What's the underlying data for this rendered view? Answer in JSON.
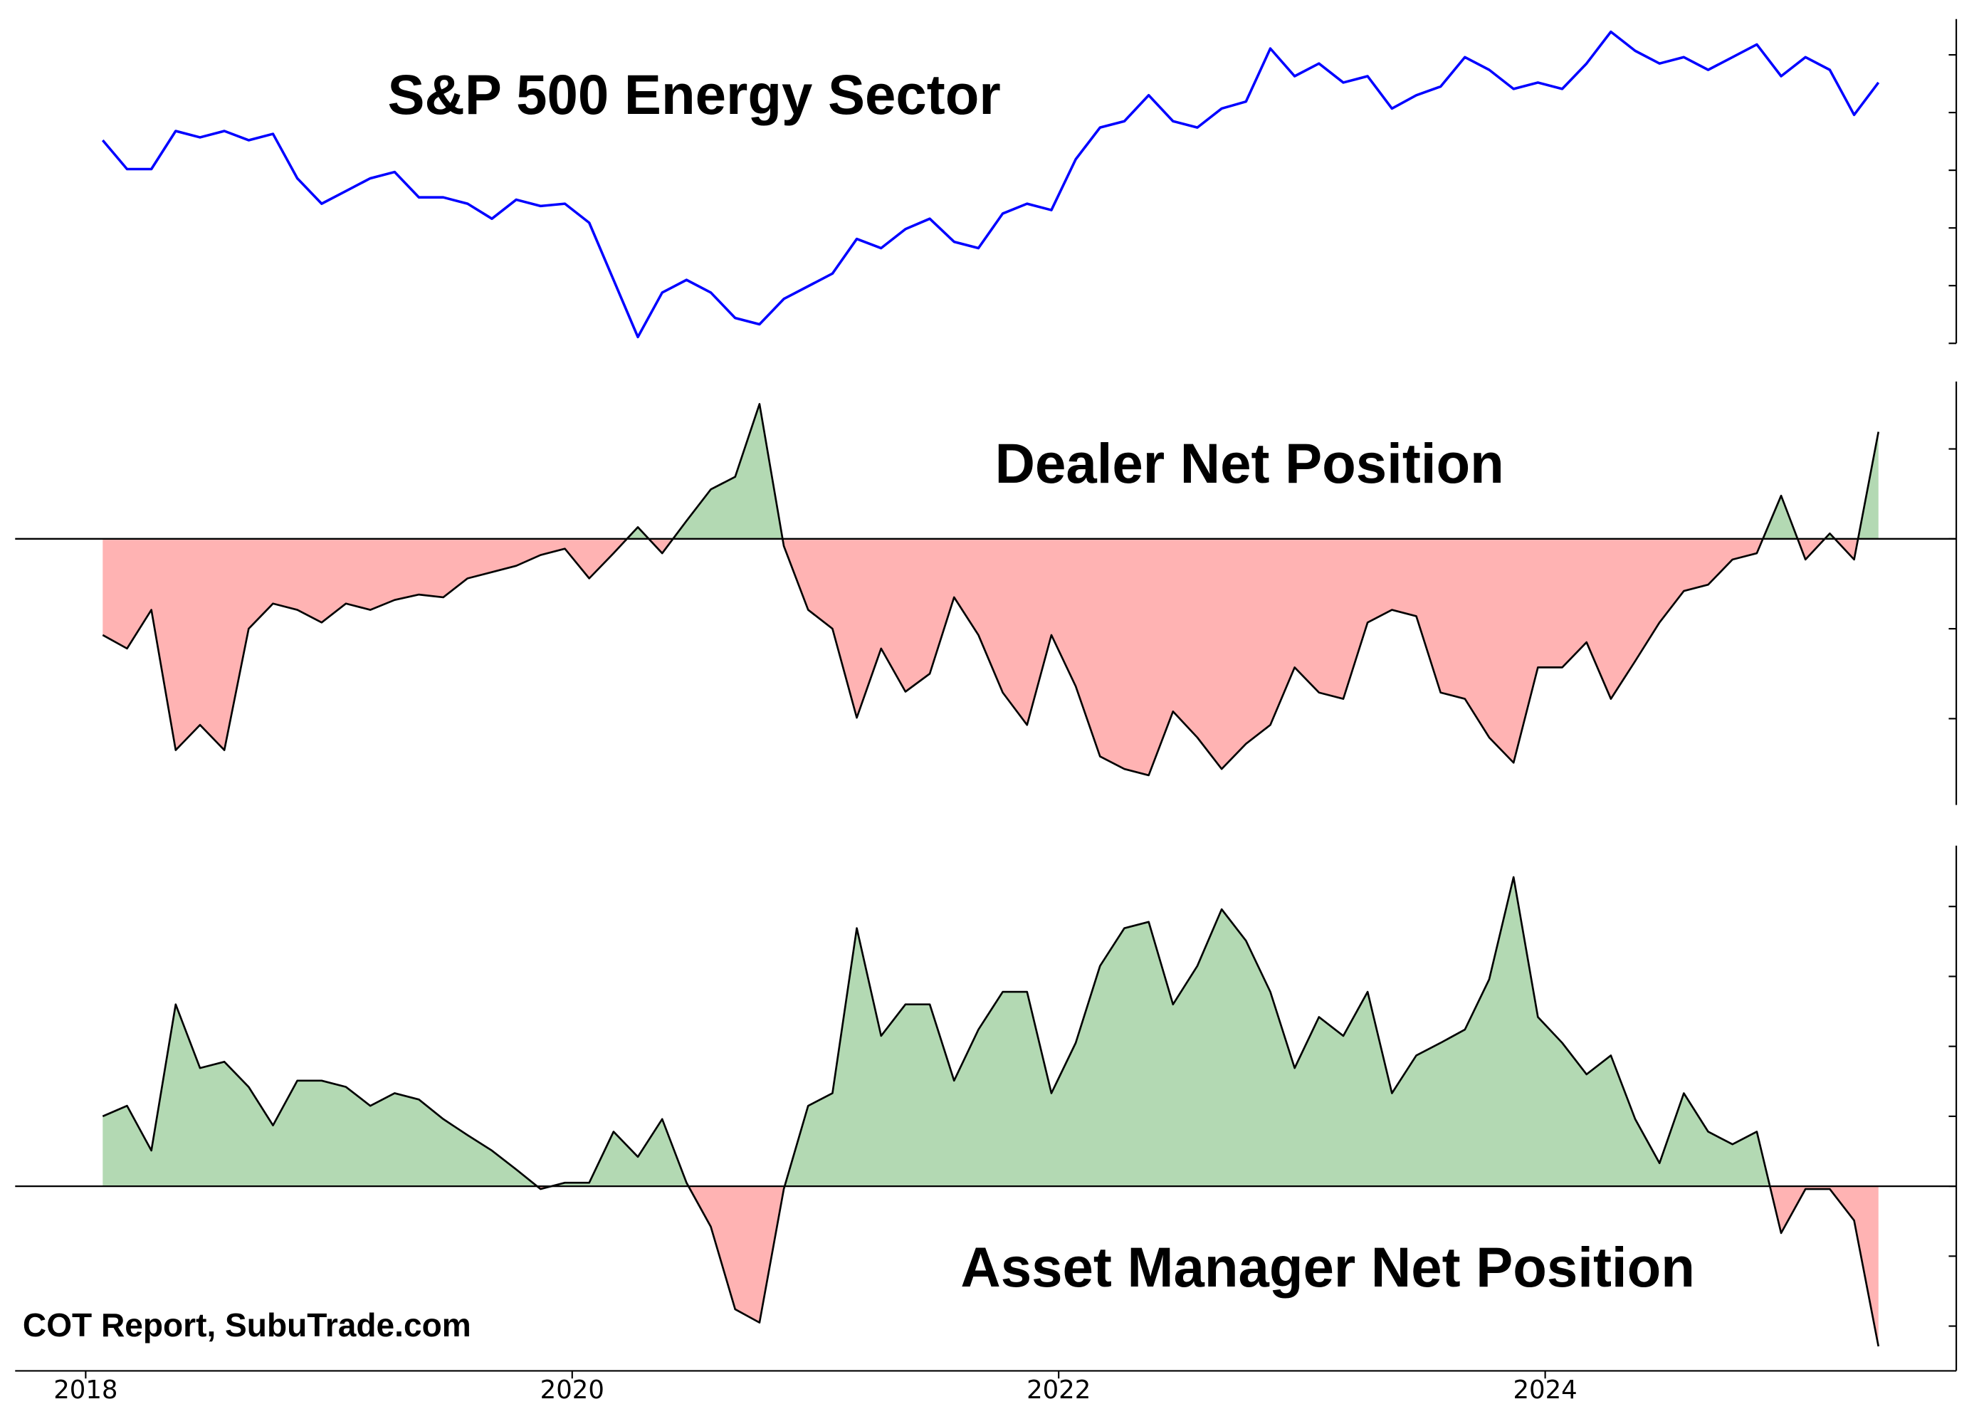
{
  "chart_data": [
    {
      "type": "line",
      "title": "S&P 500 Energy Sector",
      "x": [
        2018.07,
        2018.17,
        2018.27,
        2018.37,
        2018.47,
        2018.57,
        2018.67,
        2018.77,
        2018.87,
        2018.97,
        2019.07,
        2019.17,
        2019.27,
        2019.37,
        2019.47,
        2019.57,
        2019.67,
        2019.77,
        2019.87,
        2019.97,
        2020.07,
        2020.17,
        2020.27,
        2020.37,
        2020.47,
        2020.57,
        2020.67,
        2020.77,
        2020.87,
        2020.97,
        2021.07,
        2021.17,
        2021.27,
        2021.37,
        2021.47,
        2021.57,
        2021.67,
        2021.77,
        2021.87,
        2021.97,
        2022.07,
        2022.17,
        2022.27,
        2022.37,
        2022.47,
        2022.57,
        2022.67,
        2022.77,
        2022.87,
        2022.97,
        2023.07,
        2023.17,
        2023.27,
        2023.37,
        2023.47,
        2023.57,
        2023.67,
        2023.77,
        2023.87,
        2023.97,
        2024.07,
        2024.17,
        2024.27,
        2024.37,
        2024.47,
        2024.57,
        2024.67,
        2024.77,
        2024.87,
        2024.97,
        2025.07,
        2025.17,
        2025.27,
        2025.37
      ],
      "series": [
        {
          "color": "#0000ff",
          "values": [
            3.52,
            3.02,
            3.02,
            3.68,
            3.57,
            3.68,
            3.52,
            3.63,
            2.86,
            2.42,
            2.64,
            2.86,
            2.97,
            2.53,
            2.53,
            2.42,
            2.16,
            2.49,
            2.38,
            2.42,
            2.09,
            1.1,
            0.11,
            0.88,
            1.1,
            0.88,
            0.44,
            0.33,
            0.77,
            0.99,
            1.21,
            1.81,
            1.65,
            1.98,
            2.16,
            1.76,
            1.65,
            2.25,
            2.42,
            2.31,
            3.19,
            3.74,
            3.85,
            4.3,
            3.85,
            3.74,
            4.07,
            4.19,
            5.11,
            4.63,
            4.85,
            4.52,
            4.63,
            4.07,
            4.3,
            4.45,
            4.96,
            4.74,
            4.41,
            4.52,
            4.41,
            4.85,
            5.4,
            5.07,
            4.85,
            4.96,
            4.74,
            4.96,
            5.18,
            4.63,
            4.96,
            4.74,
            3.96,
            4.52
          ]
        }
      ],
      "xlim": [
        2017.71,
        2025.69
      ],
      "ylim": [
        0,
        5.62
      ],
      "yticks": [
        0,
        1,
        2,
        3,
        4,
        5
      ]
    },
    {
      "type": "area",
      "title": "Dealer Net Position",
      "x": [
        2018.07,
        2018.17,
        2018.27,
        2018.37,
        2018.47,
        2018.57,
        2018.67,
        2018.77,
        2018.87,
        2018.97,
        2019.07,
        2019.17,
        2019.27,
        2019.37,
        2019.47,
        2019.57,
        2019.67,
        2019.77,
        2019.87,
        2019.97,
        2020.07,
        2020.17,
        2020.27,
        2020.37,
        2020.47,
        2020.57,
        2020.67,
        2020.77,
        2020.87,
        2020.97,
        2021.07,
        2021.17,
        2021.27,
        2021.37,
        2021.47,
        2021.57,
        2021.67,
        2021.77,
        2021.87,
        2021.97,
        2022.07,
        2022.17,
        2022.27,
        2022.37,
        2022.47,
        2022.57,
        2022.67,
        2022.77,
        2022.87,
        2022.97,
        2023.07,
        2023.17,
        2023.27,
        2023.37,
        2023.47,
        2023.57,
        2023.67,
        2023.77,
        2023.87,
        2023.97,
        2024.07,
        2024.17,
        2024.27,
        2024.37,
        2024.47,
        2024.57,
        2024.67,
        2024.77,
        2024.87,
        2024.97,
        2025.07,
        2025.17,
        2025.27,
        2025.37
      ],
      "series": [
        {
          "color": "#000000",
          "values": [
            -1.07,
            -1.22,
            -0.79,
            -2.35,
            -2.07,
            -2.35,
            -1.0,
            -0.72,
            -0.79,
            -0.93,
            -0.72,
            -0.79,
            -0.68,
            -0.62,
            -0.65,
            -0.44,
            -0.37,
            -0.3,
            -0.18,
            -0.11,
            -0.44,
            -0.16,
            0.13,
            -0.16,
            0.2,
            0.55,
            0.69,
            1.5,
            -0.08,
            -0.79,
            -1.0,
            -1.99,
            -1.22,
            -1.7,
            -1.5,
            -0.65,
            -1.07,
            -1.71,
            -2.07,
            -1.07,
            -1.64,
            -2.42,
            -2.56,
            -2.63,
            -1.92,
            -2.21,
            -2.56,
            -2.28,
            -2.07,
            -1.43,
            -1.71,
            -1.78,
            -0.93,
            -0.79,
            -0.86,
            -1.71,
            -1.78,
            -2.21,
            -2.49,
            -1.43,
            -1.43,
            -1.15,
            -1.78,
            -1.36,
            -0.93,
            -0.58,
            -0.51,
            -0.23,
            -0.16,
            0.48,
            -0.23,
            0.06,
            -0.23,
            1.19
          ]
        }
      ],
      "positive_color": "#b3d9b3",
      "negative_color": "#ffb3b3",
      "xlim": [
        2017.71,
        2025.69
      ],
      "ylim": [
        -2.96,
        1.75
      ],
      "yticks": [
        -2,
        -1,
        0,
        1
      ]
    },
    {
      "type": "area",
      "title": "Asset Manager Net Position",
      "source": "COT Report, SubuTrade.com",
      "x": [
        2018.07,
        2018.17,
        2018.27,
        2018.37,
        2018.47,
        2018.57,
        2018.67,
        2018.77,
        2018.87,
        2018.97,
        2019.07,
        2019.17,
        2019.27,
        2019.37,
        2019.47,
        2019.57,
        2019.67,
        2019.77,
        2019.87,
        2019.97,
        2020.07,
        2020.17,
        2020.27,
        2020.37,
        2020.47,
        2020.57,
        2020.67,
        2020.77,
        2020.87,
        2020.97,
        2021.07,
        2021.17,
        2021.27,
        2021.37,
        2021.47,
        2021.57,
        2021.67,
        2021.77,
        2021.87,
        2021.97,
        2022.07,
        2022.17,
        2022.27,
        2022.37,
        2022.47,
        2022.57,
        2022.67,
        2022.77,
        2022.87,
        2022.97,
        2023.07,
        2023.17,
        2023.27,
        2023.37,
        2023.47,
        2023.57,
        2023.67,
        2023.77,
        2023.87,
        2023.97,
        2024.07,
        2024.17,
        2024.27,
        2024.37,
        2024.47,
        2024.57,
        2024.67,
        2024.77,
        2024.87,
        2024.97,
        2025.07,
        2025.17,
        2025.27,
        2025.37
      ],
      "series": [
        {
          "color": "#000000",
          "values": [
            1.0,
            1.15,
            0.51,
            2.6,
            1.69,
            1.78,
            1.42,
            0.87,
            1.51,
            1.51,
            1.42,
            1.15,
            1.33,
            1.24,
            0.96,
            0.73,
            0.51,
            0.24,
            -0.04,
            0.05,
            0.05,
            0.78,
            0.42,
            0.96,
            0.05,
            -0.58,
            -1.76,
            -1.95,
            -0.04,
            1.15,
            1.33,
            3.69,
            2.15,
            2.6,
            2.6,
            1.51,
            2.24,
            2.78,
            2.78,
            1.33,
            2.05,
            3.15,
            3.69,
            3.78,
            2.6,
            3.15,
            3.96,
            3.51,
            2.78,
            1.69,
            2.42,
            2.15,
            2.78,
            1.33,
            1.87,
            2.05,
            2.24,
            2.96,
            4.42,
            2.42,
            2.05,
            1.6,
            1.87,
            0.96,
            0.33,
            1.33,
            0.78,
            0.6,
            0.78,
            -0.67,
            -0.04,
            -0.04,
            -0.49,
            -2.29
          ]
        }
      ],
      "positive_color": "#b3d9b3",
      "negative_color": "#ffb3b3",
      "xlim": [
        2017.71,
        2025.69
      ],
      "ylim": [
        -2.64,
        4.87
      ],
      "yticks": [
        -2,
        -1,
        0,
        1,
        2,
        3,
        4
      ],
      "xticks": [
        2018,
        2020,
        2022,
        2024
      ]
    }
  ]
}
